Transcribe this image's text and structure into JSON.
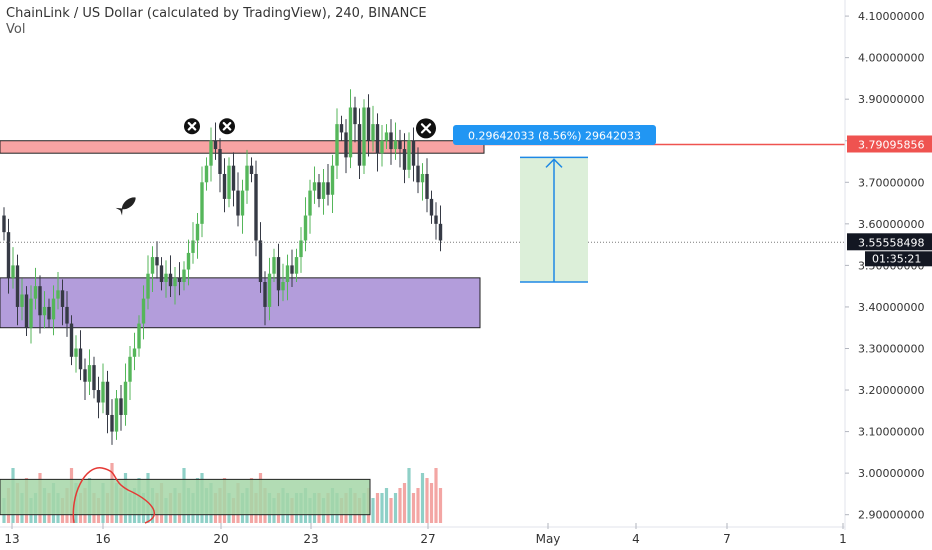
{
  "header": {
    "title": "ChainLink / US Dollar (calculated by TradingView), 240, BINANCE",
    "volume_label": "Vol"
  },
  "measure_label": "0.29642033 (8.56%) 29642033",
  "price_tags": {
    "resistance": "3.79095856",
    "last": "3.55558498",
    "countdown": "01:35:21"
  },
  "chart_data": {
    "type": "candlestick",
    "title": "ChainLink / US Dollar (calculated by TradingView), 240, BINANCE",
    "y_axis": {
      "range": [
        2.88,
        4.14
      ],
      "ticks": [
        "2.90000000",
        "3.00000000",
        "3.10000000",
        "3.20000000",
        "3.30000000",
        "3.40000000",
        "3.50000000",
        "3.60000000",
        "3.70000000",
        "3.80000000",
        "3.90000000",
        "4.00000000",
        "4.10000000"
      ]
    },
    "x_axis": {
      "ticks": [
        "13",
        "16",
        "20",
        "23",
        "27",
        "May",
        "4",
        "7",
        "1"
      ]
    },
    "candles_close": [
      3.58,
      3.47,
      3.5,
      3.4,
      3.43,
      3.35,
      3.42,
      3.45,
      3.38,
      3.4,
      3.37,
      3.42,
      3.44,
      3.4,
      3.36,
      3.28,
      3.3,
      3.25,
      3.22,
      3.26,
      3.2,
      3.17,
      3.22,
      3.14,
      3.1,
      3.18,
      3.14,
      3.22,
      3.28,
      3.3,
      3.36,
      3.42,
      3.48,
      3.52,
      3.5,
      3.46,
      3.48,
      3.45,
      3.47,
      3.46,
      3.49,
      3.53,
      3.56,
      3.6,
      3.7,
      3.74,
      3.8,
      3.78,
      3.72,
      3.66,
      3.74,
      3.68,
      3.62,
      3.68,
      3.74,
      3.72,
      3.56,
      3.46,
      3.4,
      3.48,
      3.52,
      3.44,
      3.46,
      3.5,
      3.48,
      3.52,
      3.56,
      3.62,
      3.68,
      3.7,
      3.66,
      3.7,
      3.67,
      3.74,
      3.84,
      3.82,
      3.76,
      3.88,
      3.84,
      3.74,
      3.88,
      3.8,
      3.84,
      3.77,
      3.8,
      3.82,
      3.78,
      3.8,
      3.78,
      3.73,
      3.8,
      3.74,
      3.7,
      3.72,
      3.66,
      3.62,
      3.6,
      3.56
    ],
    "volume": [
      0.25,
      0.35,
      0.55,
      0.4,
      0.3,
      0.45,
      0.25,
      0.3,
      0.5,
      0.35,
      0.3,
      0.4,
      0.3,
      0.25,
      0.35,
      0.55,
      0.4,
      0.3,
      0.35,
      0.45,
      0.3,
      0.25,
      0.4,
      0.3,
      0.6,
      0.4,
      0.35,
      0.5,
      0.3,
      0.35,
      0.45,
      0.3,
      0.5,
      0.35,
      0.3,
      0.4,
      0.25,
      0.3,
      0.35,
      0.3,
      0.55,
      0.35,
      0.3,
      0.45,
      0.5,
      0.35,
      0.4,
      0.3,
      0.35,
      0.45,
      0.3,
      0.25,
      0.4,
      0.3,
      0.35,
      0.45,
      0.3,
      0.5,
      0.35,
      0.3,
      0.25,
      0.3,
      0.35,
      0.3,
      0.25,
      0.3,
      0.3,
      0.35,
      0.25,
      0.3,
      0.3,
      0.25,
      0.3,
      0.35,
      0.3,
      0.25,
      0.3,
      0.35,
      0.3,
      0.25,
      0.3,
      0.35,
      0.25,
      0.3,
      0.3,
      0.35,
      0.25,
      0.3,
      0.35,
      0.4,
      0.55,
      0.3,
      0.35,
      0.5,
      0.45,
      0.4,
      0.55,
      0.35
    ],
    "annotations": {
      "resistance_zone": [
        3.77,
        3.8
      ],
      "support_zone": [
        3.35,
        3.47
      ],
      "volume_profile_box": [
        2.9,
        2.985
      ],
      "measure_range": [
        3.46,
        3.76
      ],
      "x_marks_at_price": [
        3.83,
        3.83,
        3.825
      ],
      "resistance_line": 3.79095856,
      "last_price": 3.55558498
    },
    "colors": {
      "up": "#26a69a",
      "down": "#ef5350",
      "candle_up_fill": "#55b65a",
      "candle_down_fill": "#363a45"
    },
    "grid": false
  }
}
